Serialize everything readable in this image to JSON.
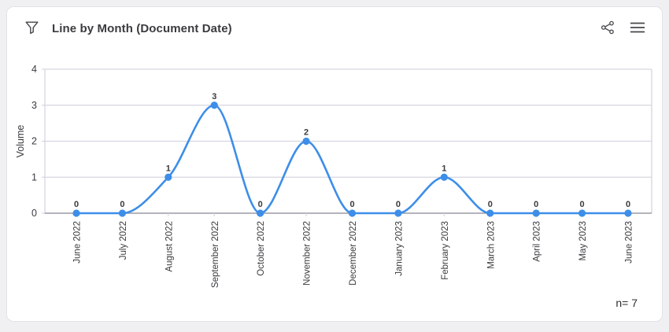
{
  "header": {
    "title": "Line by Month (Document Date)",
    "filter_icon": "filter-funnel",
    "share_icon": "share-nodes",
    "menu_icon": "hamburger-menu"
  },
  "chart_data": {
    "type": "line",
    "title": "Line by Month (Document Date)",
    "categories": [
      "June 2022",
      "July 2022",
      "August 2022",
      "September 2022",
      "October 2022",
      "November 2022",
      "December 2022",
      "January 2023",
      "February 2023",
      "March 2023",
      "April 2023",
      "May 2023",
      "June 2023"
    ],
    "values": [
      0,
      0,
      1,
      3,
      0,
      2,
      0,
      0,
      1,
      0,
      0,
      0,
      0
    ],
    "xlabel": "",
    "ylabel": "Volume",
    "ylim": [
      0,
      4
    ],
    "yticks": [
      0,
      1,
      2,
      3,
      4
    ],
    "grid": true,
    "smooth": true,
    "point_labels": true,
    "line_color": "#3d8ee8",
    "point_color": "#3d8ee8",
    "grid_color": "#d6d6e2",
    "axis_color": "#9a9aa6",
    "label_color": "#3b3b40"
  },
  "footer": {
    "n_label": "n= 7"
  }
}
